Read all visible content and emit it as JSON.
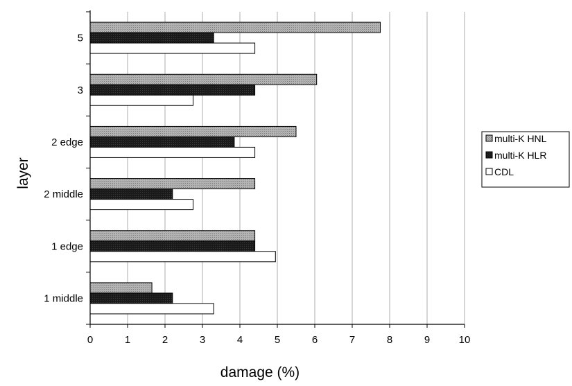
{
  "chart_data": {
    "type": "bar",
    "orientation": "horizontal",
    "title": "",
    "xlabel": "damage (%)",
    "ylabel": "layer",
    "xlim": [
      0,
      10
    ],
    "x_ticks": [
      "0",
      "1",
      "2",
      "3",
      "4",
      "5",
      "6",
      "7",
      "8",
      "9",
      "10"
    ],
    "grid": "vertical",
    "legend_position": "right",
    "categories": [
      "1 middle",
      "1 edge",
      "2 middle",
      "2 edge",
      "3",
      "5"
    ],
    "series": [
      {
        "name": "multi-K HNL",
        "color": "#a8a8a8",
        "values": [
          1.65,
          4.4,
          4.4,
          5.5,
          6.05,
          7.75
        ]
      },
      {
        "name": "multi-K HLR",
        "color": "#1c1c1c",
        "values": [
          2.2,
          4.4,
          2.2,
          3.85,
          4.4,
          3.3
        ]
      },
      {
        "name": "CDL",
        "color": "#ffffff",
        "values": [
          3.3,
          4.95,
          2.75,
          4.4,
          2.75,
          4.4
        ]
      }
    ]
  }
}
